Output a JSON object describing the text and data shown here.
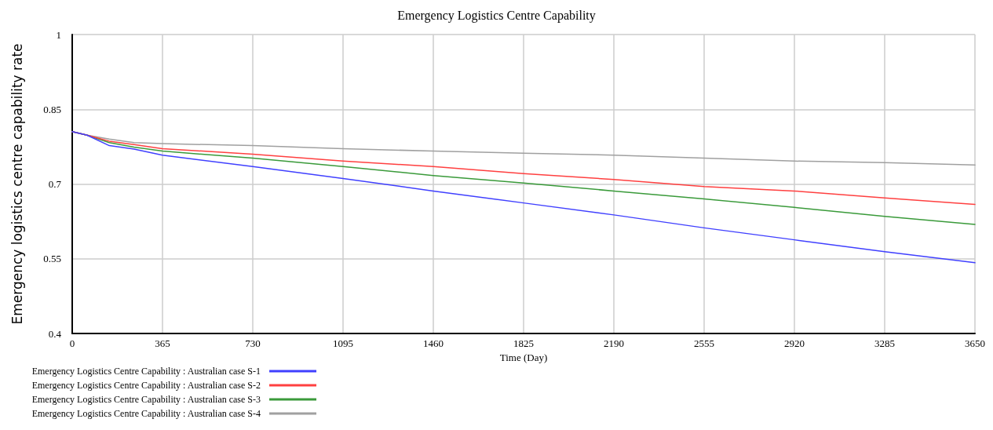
{
  "chart_data": {
    "type": "line",
    "title": "Emergency Logistics Centre Capability",
    "xlabel": "Time (Day)",
    "ylabel": "Emergency logistics centre capability rate",
    "x": [
      0,
      60,
      150,
      250,
      365,
      730,
      1095,
      1460,
      1825,
      2190,
      2555,
      2920,
      3285,
      3650
    ],
    "series": [
      {
        "name": "Emergency Logistics Centre Capability : Australian case S-1",
        "color": "#4040ff",
        "values": [
          0.805,
          0.798,
          0.777,
          0.77,
          0.758,
          0.735,
          0.711,
          0.686,
          0.662,
          0.638,
          0.612,
          0.588,
          0.564,
          0.542
        ]
      },
      {
        "name": "Emergency Logistics Centre Capability : Australian case S-2",
        "color": "#ff4040",
        "values": [
          0.805,
          0.798,
          0.786,
          0.779,
          0.771,
          0.76,
          0.746,
          0.735,
          0.721,
          0.709,
          0.695,
          0.686,
          0.672,
          0.659
        ]
      },
      {
        "name": "Emergency Logistics Centre Capability : Australian case S-3",
        "color": "#3a9a3a",
        "values": [
          0.805,
          0.798,
          0.783,
          0.774,
          0.766,
          0.752,
          0.735,
          0.717,
          0.702,
          0.686,
          0.67,
          0.653,
          0.635,
          0.619
        ]
      },
      {
        "name": "Emergency Logistics Centre Capability : Australian case S-4",
        "color": "#a0a0a0",
        "values": [
          0.805,
          0.798,
          0.79,
          0.783,
          0.781,
          0.777,
          0.771,
          0.766,
          0.762,
          0.758,
          0.752,
          0.746,
          0.743,
          0.738
        ]
      }
    ],
    "xlim": [
      0,
      3650
    ],
    "xticks": [
      0,
      365,
      730,
      1095,
      1460,
      1825,
      2190,
      2555,
      2920,
      3285,
      3650
    ],
    "ylim": [
      0.4,
      1
    ],
    "yticks": [
      0.4,
      0.55,
      0.7,
      0.85,
      1
    ],
    "grid": true,
    "legend": "bottom",
    "marker": "none",
    "line_style": "solid"
  }
}
